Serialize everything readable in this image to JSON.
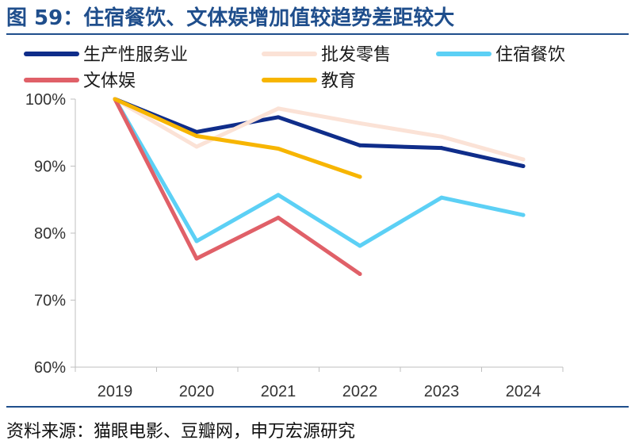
{
  "title": "图 59：住宿餐饮、文体娱增加值较趋势差距较大",
  "source": "资料来源：猫眼电影、豆瓣网，申万宏源研究",
  "chart_data": {
    "type": "line",
    "x": [
      "2019",
      "2020",
      "2021",
      "2022",
      "2023",
      "2024"
    ],
    "y_ticks": [
      "100%",
      "90%",
      "80%",
      "70%",
      "60%"
    ],
    "ylim": [
      60,
      100
    ],
    "y_unit": "%",
    "grid": false,
    "legend_position": "top",
    "series": [
      {
        "name": "生产性服务业",
        "color": "#0f2d8a",
        "values": [
          100,
          95.1,
          97.3,
          93.1,
          92.7,
          90.0
        ]
      },
      {
        "name": "批发零售",
        "color": "#fbe2d6",
        "values": [
          100,
          92.9,
          98.6,
          96.4,
          94.4,
          91.0
        ]
      },
      {
        "name": "住宿餐饮",
        "color": "#5cd0f5",
        "values": [
          100,
          78.8,
          85.7,
          78.1,
          85.3,
          82.7
        ]
      },
      {
        "name": "文体娱",
        "color": "#e06068",
        "values": [
          100,
          76.2,
          82.3,
          73.9,
          null,
          null
        ]
      },
      {
        "name": "教育",
        "color": "#f7b500",
        "values": [
          100,
          94.5,
          92.6,
          88.4,
          null,
          null
        ]
      }
    ]
  }
}
